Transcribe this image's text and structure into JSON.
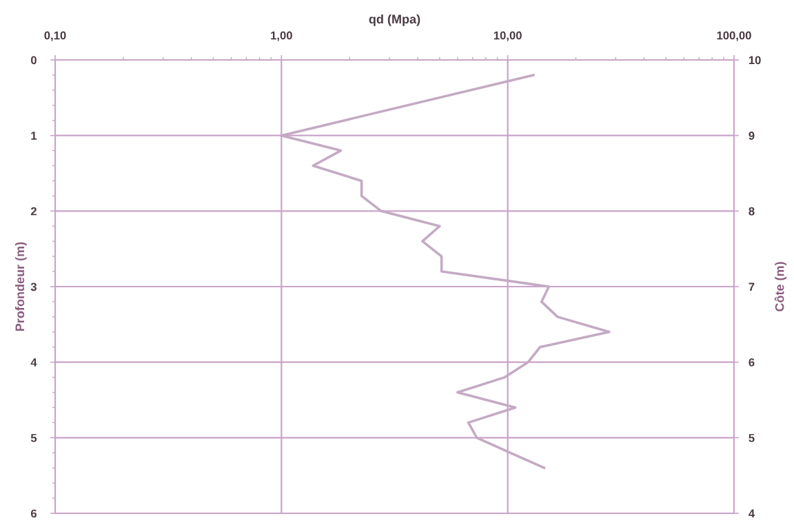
{
  "chart_data": {
    "type": "line",
    "xlabel": "qd (Mpa)",
    "ylabel": "Profondeur (m)",
    "y2label": "Côte (m)",
    "x": [
      13.0,
      1.0,
      1.83,
      1.38,
      2.26,
      2.26,
      2.76,
      5.0,
      4.2,
      5.1,
      5.1,
      15.2,
      14.1,
      16.6,
      28.1,
      13.9,
      12.3,
      9.7,
      6.0,
      10.8,
      6.7,
      7.3,
      14.5
    ],
    "values": [
      0.2,
      1.0,
      1.2,
      1.4,
      1.6,
      1.8,
      2.0,
      2.2,
      2.4,
      2.6,
      2.8,
      3.0,
      3.2,
      3.4,
      3.6,
      3.8,
      4.0,
      4.2,
      4.4,
      4.6,
      4.8,
      5.0,
      5.4
    ],
    "color": "#c4aac4",
    "log": "x",
    "xlim": [
      0.1,
      100
    ],
    "xticks": [
      {
        "value": 0.1,
        "label": "0,10"
      },
      {
        "value": 0.2,
        "label": null
      },
      {
        "value": 0.3,
        "label": null
      },
      {
        "value": 0.4,
        "label": null
      },
      {
        "value": 0.5,
        "label": null
      },
      {
        "value": 0.6,
        "label": null
      },
      {
        "value": 0.7,
        "label": null
      },
      {
        "value": 0.8,
        "label": null
      },
      {
        "value": 0.9,
        "label": null
      },
      {
        "value": 1,
        "label": "1,00"
      },
      {
        "value": 2,
        "label": null
      },
      {
        "value": 3,
        "label": null
      },
      {
        "value": 4,
        "label": null
      },
      {
        "value": 5,
        "label": null
      },
      {
        "value": 6,
        "label": null
      },
      {
        "value": 7,
        "label": null
      },
      {
        "value": 8,
        "label": null
      },
      {
        "value": 9,
        "label": null
      },
      {
        "value": 10,
        "label": "10,00"
      },
      {
        "value": 20,
        "label": null
      },
      {
        "value": 30,
        "label": null
      },
      {
        "value": 40,
        "label": null
      },
      {
        "value": 50,
        "label": null
      },
      {
        "value": 60,
        "label": null
      },
      {
        "value": 70,
        "label": null
      },
      {
        "value": 80,
        "label": null
      },
      {
        "value": 90,
        "label": null
      },
      {
        "value": 100,
        "label": "100,00"
      }
    ],
    "ylim": [
      6,
      0
    ],
    "yticks": [
      0,
      {
        "value": 0.2,
        "label": null
      },
      {
        "value": 0.4,
        "label": null
      },
      {
        "value": 0.6,
        "label": null
      },
      {
        "value": 0.8,
        "label": null
      },
      1,
      {
        "value": 1.2,
        "label": null
      },
      {
        "value": 1.4,
        "label": null
      },
      {
        "value": 1.6,
        "label": null
      },
      {
        "value": 1.8,
        "label": null
      },
      2,
      {
        "value": 2.2,
        "label": null
      },
      {
        "value": 2.4,
        "label": null
      },
      {
        "value": 2.6,
        "label": null
      },
      {
        "value": 2.8,
        "label": null
      },
      3,
      {
        "value": 3.2,
        "label": null
      },
      {
        "value": 3.4,
        "label": null
      },
      {
        "value": 3.6,
        "label": null
      },
      {
        "value": 3.8,
        "label": null
      },
      4,
      {
        "value": 4.2,
        "label": null
      },
      {
        "value": 4.4,
        "label": null
      },
      {
        "value": 4.6,
        "label": null
      },
      {
        "value": 4.8,
        "label": null
      },
      5,
      {
        "value": 5.2,
        "label": null
      },
      {
        "value": 5.4,
        "label": null
      },
      {
        "value": 5.6,
        "label": null
      },
      {
        "value": 5.8,
        "label": null
      },
      6
    ],
    "y2lim": [
      4,
      10
    ],
    "y2ticks": [
      4,
      5,
      6,
      7,
      8,
      9,
      10
    ],
    "grid": true
  }
}
